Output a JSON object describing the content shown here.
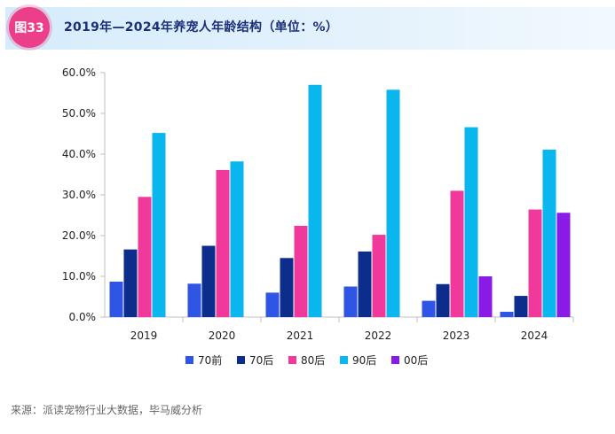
{
  "header": {
    "badge": "图33",
    "title": "2019年—2024年养宠人年龄结构（单位：%）"
  },
  "footer": {
    "source": "来源：派读宠物行业大数据，毕马威分析"
  },
  "chart_data": {
    "type": "bar",
    "title": "2019年—2024年养宠人年龄结构（单位：%）",
    "xlabel": "",
    "ylabel": "",
    "ylim": [
      0,
      60
    ],
    "yticks": [
      "0.0%",
      "10.0%",
      "20.0%",
      "30.0%",
      "40.0%",
      "50.0%",
      "60.0%"
    ],
    "categories": [
      "2019",
      "2020",
      "2021",
      "2022",
      "2023",
      "2024"
    ],
    "legend_position": "bottom",
    "series": [
      {
        "name": "70前",
        "color": "#2f55e4",
        "values": [
          8.7,
          8.2,
          6.0,
          7.5,
          4.0,
          1.3
        ]
      },
      {
        "name": "70后",
        "color": "#0c2d8c",
        "values": [
          16.6,
          17.5,
          14.5,
          16.1,
          8.1,
          5.2
        ]
      },
      {
        "name": "80后",
        "color": "#f0399a",
        "values": [
          29.5,
          36.1,
          22.4,
          20.2,
          31.0,
          26.4
        ]
      },
      {
        "name": "90后",
        "color": "#0ab6ee",
        "values": [
          45.2,
          38.2,
          57.0,
          55.8,
          46.6,
          41.1
        ]
      },
      {
        "name": "00后",
        "color": "#8a1ae6",
        "values": [
          null,
          null,
          null,
          null,
          10.0,
          25.6
        ]
      }
    ]
  }
}
